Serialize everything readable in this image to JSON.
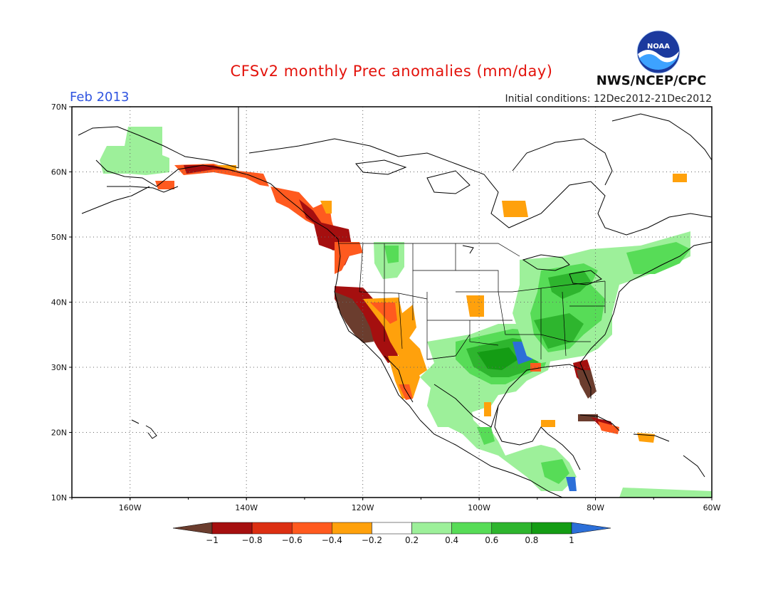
{
  "header": {
    "title": "CFSv2 monthly Prec anomalies (mm/day)",
    "month": "Feb 2013",
    "initial_conditions": "Initial conditions: 12Dec2012-21Dec2012",
    "agency": "NWS/NCEP/CPC",
    "logo_text": "NOAA"
  },
  "map": {
    "lon_range": [
      -170,
      -60
    ],
    "lat_range": [
      10,
      70
    ],
    "lat_ticks": [
      "70N",
      "60N",
      "50N",
      "40N",
      "30N",
      "20N",
      "10N"
    ],
    "lon_ticks": [
      "160W",
      "140W",
      "120W",
      "100W",
      "80W",
      "60W"
    ],
    "grid": "dotted",
    "anomaly_regions": [
      {
        "region": "Northern California coast",
        "level": "-1"
      },
      {
        "region": "Pacific Northwest coast",
        "level": "-1"
      },
      {
        "region": "Southern Florida",
        "level": "-1"
      },
      {
        "region": "Gulf of Alaska coast",
        "level": "-0.8"
      },
      {
        "region": "Southwest US / Baja",
        "level": "-0.4"
      },
      {
        "region": "Central Canada (Hudson Bay)",
        "level": "-0.4"
      },
      {
        "region": "Lower Mississippi Valley",
        "level": "1"
      },
      {
        "region": "Texas / Gulf Coast",
        "level": "0.8"
      },
      {
        "region": "Ohio Valley / Great Lakes",
        "level": "0.6"
      },
      {
        "region": "Northeast US / Canada",
        "level": "0.4"
      },
      {
        "region": "Western Alaska",
        "level": "0.2"
      },
      {
        "region": "Central America",
        "level": "0.4"
      }
    ]
  },
  "colorbar": {
    "labels": [
      "-1",
      "-0.8",
      "-0.6",
      "-0.4",
      "-0.2",
      "0.2",
      "0.4",
      "0.6",
      "0.8",
      "1"
    ],
    "colors": [
      "#6b3d2e",
      "#a50f0f",
      "#dc2f12",
      "#ff5a1f",
      "#ffa10c",
      "#ffffff",
      "#9df09a",
      "#57dc57",
      "#2eb52e",
      "#149c14",
      "#2c6fd8"
    ]
  }
}
